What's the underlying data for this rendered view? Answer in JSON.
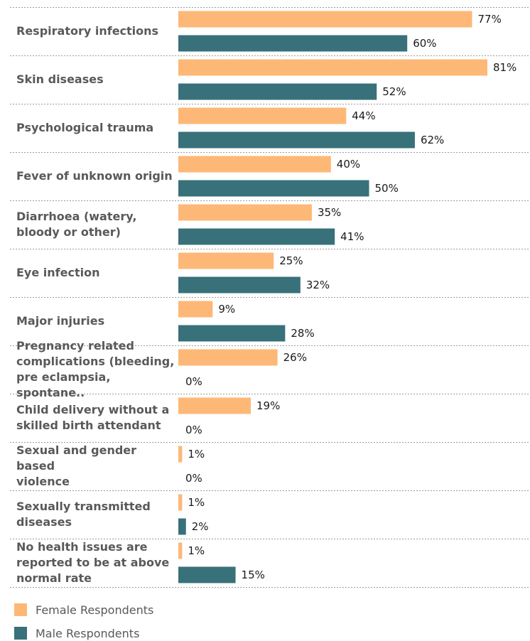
{
  "chart_data": {
    "type": "bar",
    "orientation": "horizontal",
    "categories": [
      "Respiratory infections",
      "Skin diseases",
      "Psychological trauma",
      "Fever of unknown origin",
      "Diarrhoea (watery,\nbloody or other)",
      "Eye infection",
      "Major injuries",
      "Pregnancy related\ncomplications (bleeding,\npre eclampsia, spontane..",
      "Child delivery without a\nskilled birth attendant",
      "Sexual and gender based\nviolence",
      "Sexually transmitted\ndiseases",
      "No health issues are\nreported to be at above\nnormal rate"
    ],
    "series": [
      {
        "name": "Female Respondents",
        "color": "#FDB877",
        "values": [
          77,
          81,
          44,
          40,
          35,
          25,
          9,
          26,
          19,
          1,
          1,
          1
        ],
        "labels": [
          "77%",
          "81%",
          "44%",
          "40%",
          "35%",
          "25%",
          "9%",
          "26%",
          "19%",
          "1%",
          "1%",
          "1%"
        ]
      },
      {
        "name": "Male Respondents",
        "color": "#38717A",
        "values": [
          60,
          52,
          62,
          50,
          41,
          32,
          28,
          0,
          0,
          0,
          2,
          15
        ],
        "labels": [
          "60%",
          "52%",
          "62%",
          "50%",
          "41%",
          "32%",
          "28%",
          "0%",
          "0%",
          "0%",
          "2%",
          "15%"
        ]
      }
    ],
    "xlim": [
      0,
      100
    ],
    "grid": "dotted row separators",
    "legend": {
      "position": "bottom-left",
      "items": [
        "Female Respondents",
        "Male Respondents"
      ]
    }
  }
}
